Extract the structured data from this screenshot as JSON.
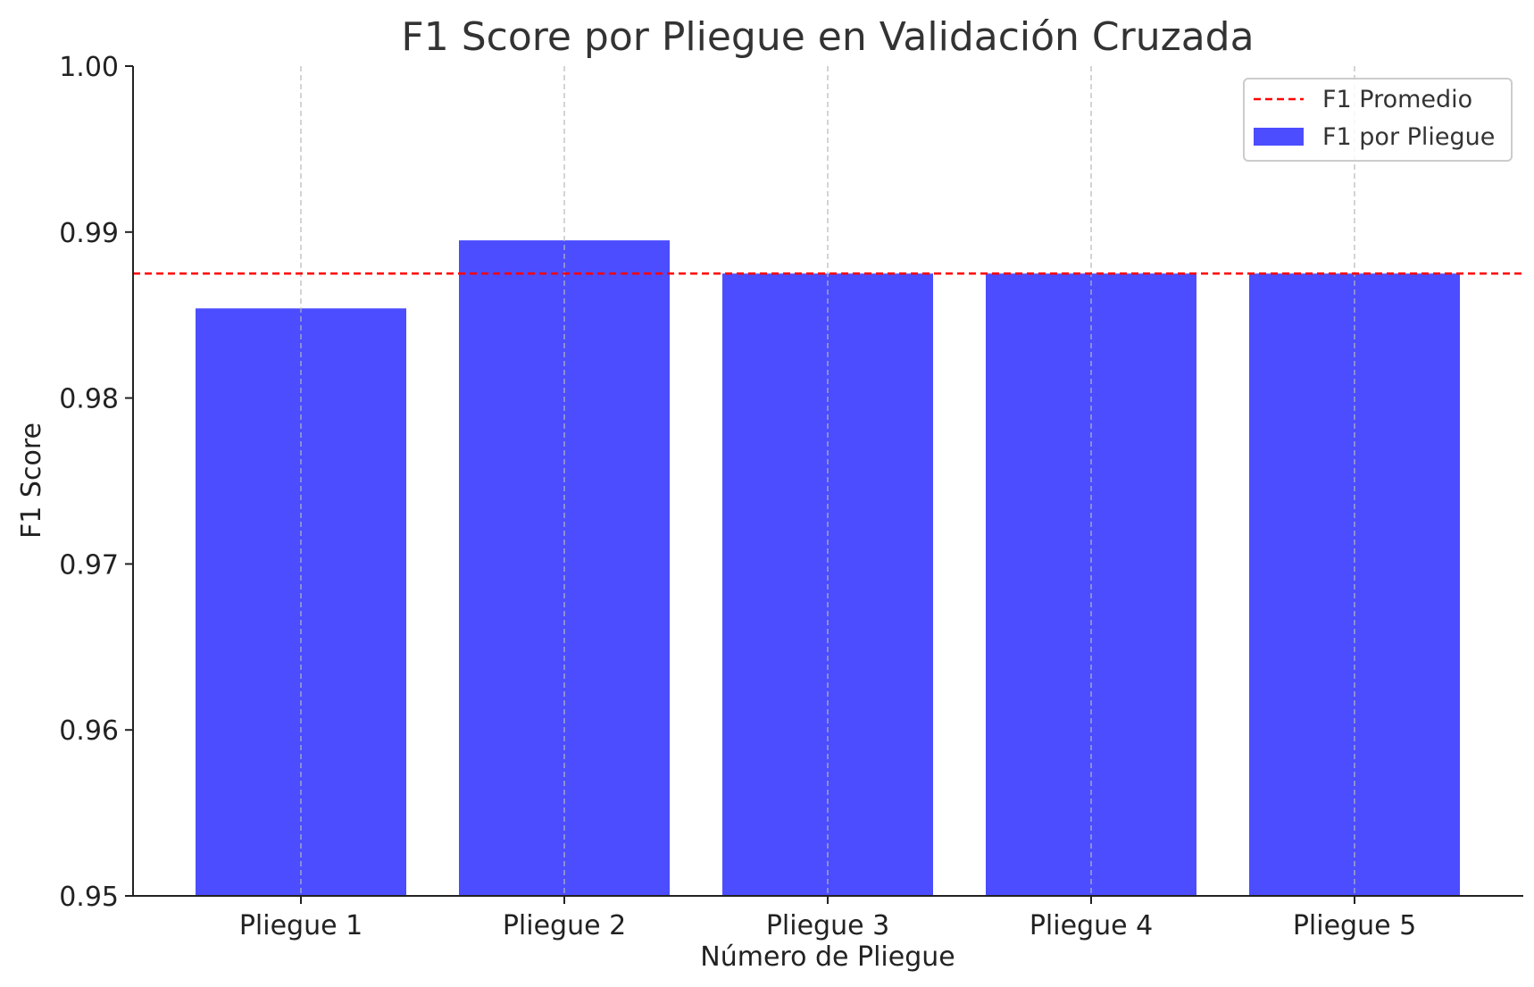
{
  "chart_data": {
    "type": "bar",
    "title": "F1 Score por Pliegue en Validación Cruzada",
    "xlabel": "Número de Pliegue",
    "ylabel": "F1 Score",
    "categories": [
      "Pliegue 1",
      "Pliegue 2",
      "Pliegue 3",
      "Pliegue 4",
      "Pliegue 5"
    ],
    "series": [
      {
        "name": "F1 por Pliegue",
        "values": [
          0.9854,
          0.9895,
          0.9875,
          0.9875,
          0.9875
        ],
        "color": "#4b4dff"
      }
    ],
    "reference_line": {
      "name": "F1 Promedio",
      "value": 0.9875,
      "color": "#ff0000",
      "style": "dashed"
    },
    "ylim": [
      0.95,
      1.0
    ],
    "yticks": [
      "0.95",
      "0.96",
      "0.97",
      "0.98",
      "0.99",
      "1.00"
    ],
    "grid": {
      "x": true,
      "y": false
    },
    "legend_position": "top-right"
  }
}
